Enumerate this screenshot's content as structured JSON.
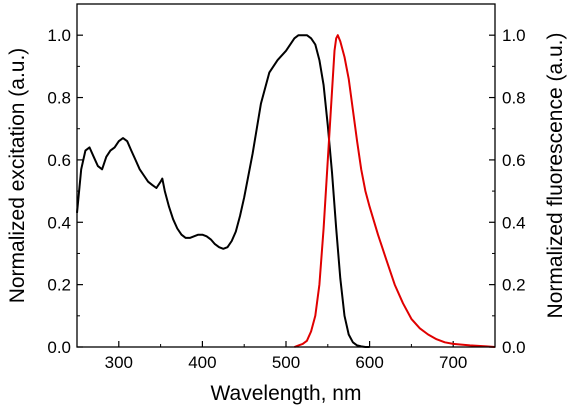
{
  "chart_data": {
    "type": "line",
    "xlabel": "Wavelength, nm",
    "ylabel_left": "Normalized excitation (a.u.)",
    "ylabel_right": "Normalized fluorescence (a.u.)",
    "xlim": [
      250,
      750
    ],
    "ylim": [
      0.0,
      1.1
    ],
    "x_ticks": [
      "300",
      "400",
      "500",
      "600",
      "700"
    ],
    "y_ticks": [
      "0.0",
      "0.2",
      "0.4",
      "0.6",
      "0.8",
      "1.0"
    ],
    "grid": false,
    "legend": "none",
    "series": [
      {
        "axis": "left",
        "color": "#000000",
        "x": [
          250,
          255,
          260,
          265,
          270,
          275,
          280,
          285,
          290,
          295,
          300,
          305,
          310,
          315,
          320,
          325,
          330,
          335,
          340,
          345,
          350,
          352,
          355,
          360,
          365,
          370,
          375,
          380,
          385,
          390,
          395,
          400,
          405,
          410,
          415,
          420,
          425,
          430,
          435,
          440,
          445,
          450,
          460,
          470,
          480,
          490,
          500,
          510,
          515,
          520,
          525,
          530,
          535,
          540,
          545,
          550,
          555,
          560,
          565,
          570,
          575,
          580,
          585,
          590,
          595,
          600
        ],
        "y": [
          0.43,
          0.57,
          0.63,
          0.64,
          0.61,
          0.58,
          0.57,
          0.61,
          0.63,
          0.64,
          0.66,
          0.67,
          0.66,
          0.63,
          0.6,
          0.57,
          0.55,
          0.53,
          0.52,
          0.51,
          0.53,
          0.54,
          0.5,
          0.45,
          0.41,
          0.38,
          0.36,
          0.35,
          0.35,
          0.355,
          0.36,
          0.36,
          0.355,
          0.345,
          0.33,
          0.32,
          0.315,
          0.32,
          0.34,
          0.37,
          0.42,
          0.48,
          0.62,
          0.78,
          0.88,
          0.92,
          0.95,
          0.99,
          1.0,
          1.0,
          1.0,
          0.99,
          0.97,
          0.92,
          0.84,
          0.71,
          0.56,
          0.38,
          0.22,
          0.1,
          0.04,
          0.015,
          0.005,
          0.002,
          0.0,
          0.0
        ]
      },
      {
        "axis": "right",
        "color": "#e00000",
        "x": [
          510,
          515,
          520,
          525,
          530,
          535,
          540,
          545,
          550,
          555,
          558,
          560,
          562,
          565,
          570,
          575,
          580,
          585,
          590,
          595,
          600,
          610,
          620,
          630,
          640,
          650,
          660,
          670,
          680,
          690,
          700,
          720,
          740,
          750
        ],
        "y": [
          0.0,
          0.005,
          0.01,
          0.02,
          0.05,
          0.1,
          0.2,
          0.38,
          0.6,
          0.82,
          0.95,
          0.99,
          1.0,
          0.98,
          0.93,
          0.86,
          0.76,
          0.66,
          0.57,
          0.5,
          0.45,
          0.36,
          0.28,
          0.2,
          0.14,
          0.09,
          0.06,
          0.04,
          0.025,
          0.015,
          0.01,
          0.005,
          0.002,
          0.0
        ]
      }
    ]
  }
}
